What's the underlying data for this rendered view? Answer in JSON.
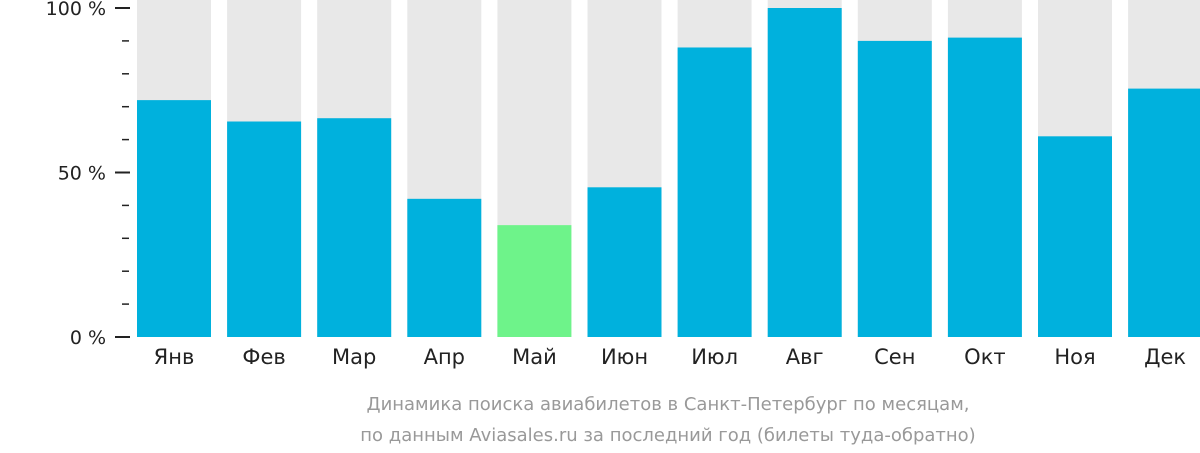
{
  "chart_data": {
    "type": "bar",
    "categories": [
      "Янв",
      "Фев",
      "Мар",
      "Апр",
      "Май",
      "Июн",
      "Июл",
      "Авг",
      "Сен",
      "Окт",
      "Ноя",
      "Дек"
    ],
    "values": [
      72,
      65.5,
      66.5,
      42,
      34,
      45.5,
      88,
      100,
      90,
      91,
      61,
      75.5
    ],
    "highlight_index": 4,
    "ylim": [
      0,
      100
    ],
    "yticks": [
      {
        "value": 0,
        "label": "0 %"
      },
      {
        "value": 50,
        "label": "50 %"
      },
      {
        "value": 100,
        "label": "100 %"
      }
    ],
    "minor_ticks_per_interval": 5,
    "caption": [
      "Динамика поиска авиабилетов в Санкт-Петербург по месяцам,",
      "по данным Aviasales.ru за последний год (билеты туда-обратно)"
    ],
    "colors": {
      "bar": "#00b1dd",
      "highlight": "#6ef38a",
      "background_bar": "#e8e8e8",
      "axis": "#222222",
      "caption": "#999999"
    }
  }
}
